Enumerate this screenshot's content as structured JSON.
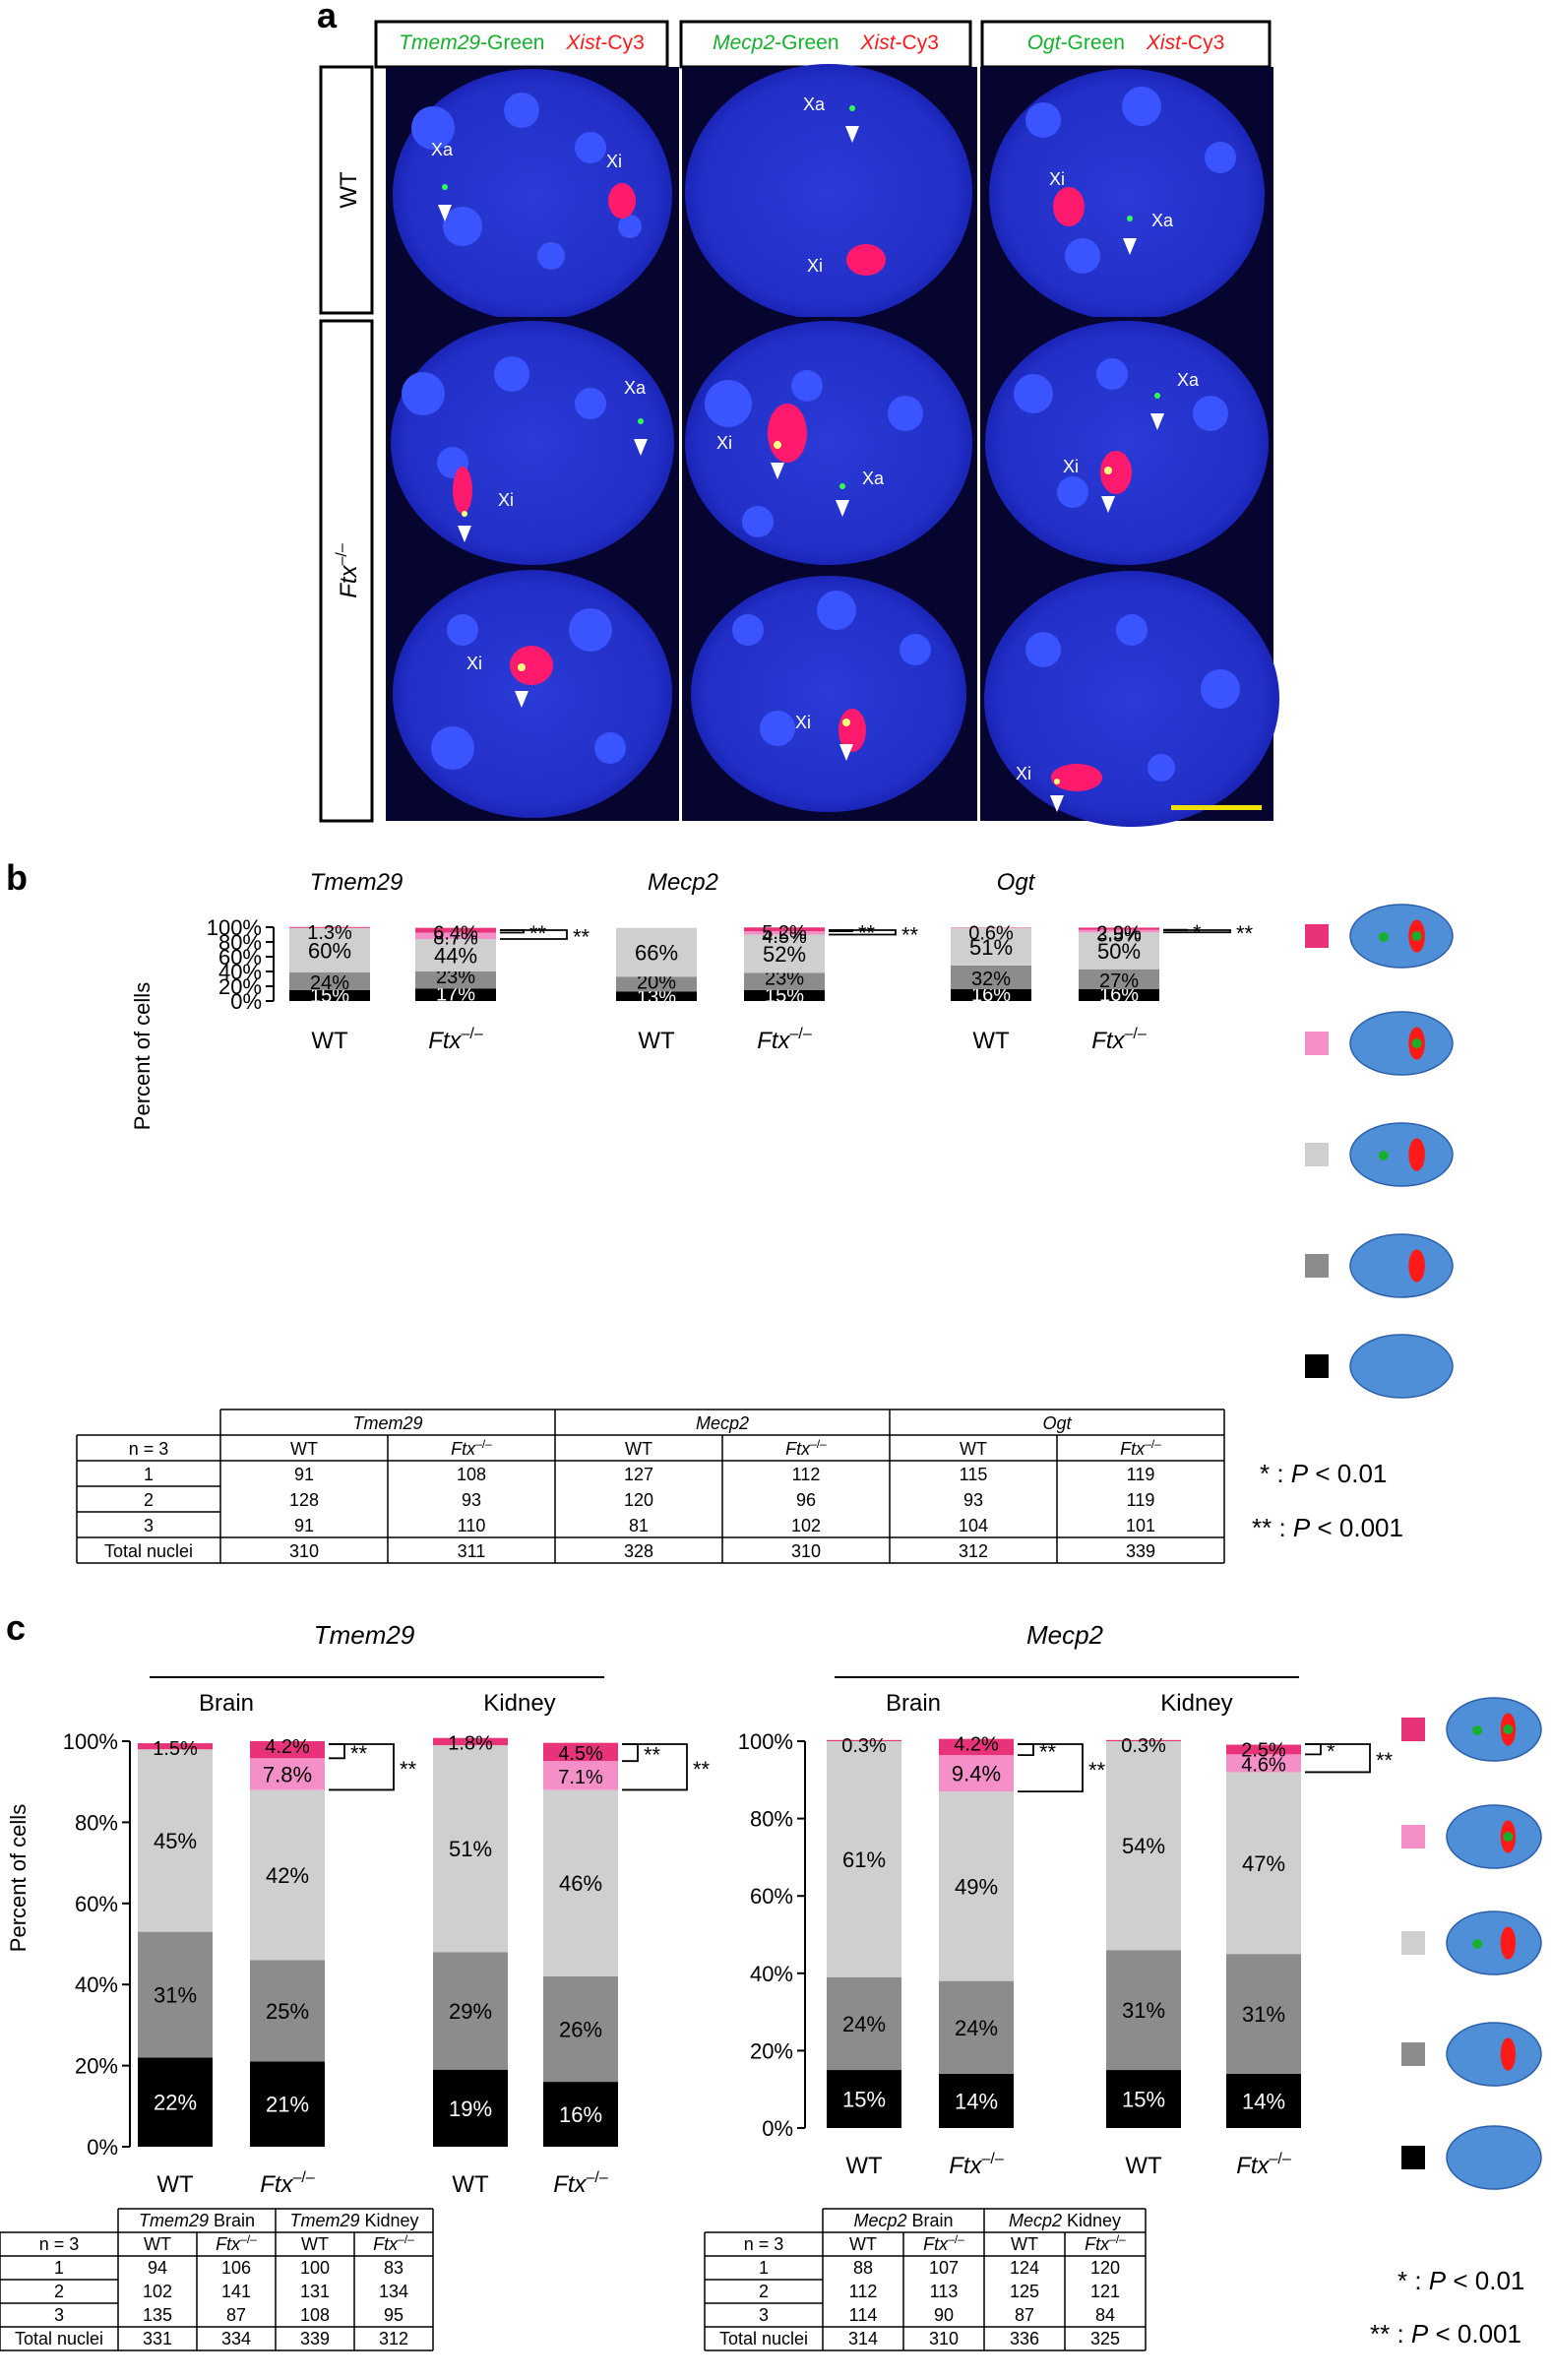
{
  "panel_a": {
    "label": "a",
    "columns": [
      {
        "gene": "Tmem29",
        "green": "-Green",
        "xist": "Xist",
        "cy3": "-Cy3"
      },
      {
        "gene": "Mecp2",
        "green": "-Green",
        "xist": "Xist",
        "cy3": "-Cy3"
      },
      {
        "gene": "Ogt",
        "green": "-Green",
        "xist": "Xist",
        "cy3": "-Cy3"
      }
    ],
    "row_wt": "WT",
    "row_ftx": "Ftx",
    "row_ftx_sup": "–/–",
    "cells": [
      {
        "labels": [
          {
            "t": "Xa"
          },
          {
            "t": "Xi"
          }
        ]
      },
      {
        "labels": [
          {
            "t": "Xa"
          },
          {
            "t": "Xi"
          }
        ]
      },
      {
        "labels": [
          {
            "t": "Xi"
          },
          {
            "t": "Xa"
          }
        ]
      },
      {
        "labels": [
          {
            "t": "Xa"
          },
          {
            "t": "Xi"
          }
        ]
      },
      {
        "labels": [
          {
            "t": "Xi"
          },
          {
            "t": "Xa"
          }
        ]
      },
      {
        "labels": [
          {
            "t": "Xa"
          },
          {
            "t": "Xi"
          }
        ]
      },
      {
        "labels": [
          {
            "t": "Xi"
          }
        ]
      },
      {
        "labels": [
          {
            "t": "Xi"
          }
        ]
      },
      {
        "labels": [
          {
            "t": "Xi"
          }
        ]
      }
    ]
  },
  "panel_b": {
    "label": "b",
    "ylabel": "Percent of cells",
    "yticks": [
      "0%",
      "20%",
      "40%",
      "60%",
      "80%",
      "100%"
    ],
    "wt": "WT",
    "ftx": "Ftx",
    "ftx_sup": "–/–",
    "table": {
      "n_label": "n = 3",
      "genes": [
        "Tmem29",
        "Mecp2",
        "Ogt"
      ],
      "sub": [
        "WT",
        "Ftx",
        "WT",
        "Ftx",
        "WT",
        "Ftx"
      ],
      "rows": [
        {
          "label": "1",
          "values": [
            "91",
            "108",
            "127",
            "112",
            "115",
            "119"
          ]
        },
        {
          "label": "2",
          "values": [
            "128",
            "93",
            "120",
            "96",
            "93",
            "119"
          ]
        },
        {
          "label": "3",
          "values": [
            "91",
            "110",
            "81",
            "102",
            "104",
            "101"
          ]
        },
        {
          "label": "Total nuclei",
          "values": [
            "310",
            "311",
            "328",
            "310",
            "312",
            "339"
          ]
        }
      ]
    },
    "sig1": "* : P < 0.01",
    "sig2": "** : P < 0.001"
  },
  "panel_c": {
    "label": "c",
    "ylabel": "Percent of cells",
    "yticks": [
      "0%",
      "20%",
      "40%",
      "60%",
      "80%",
      "100%"
    ],
    "left_gene": "Tmem29",
    "right_gene": "Mecp2",
    "brain": "Brain",
    "kidney": "Kidney",
    "wt": "WT",
    "ftx": "Ftx",
    "ftx_sup": "–/–",
    "table_left": {
      "n_label": "n = 3",
      "groups": [
        {
          "gene": "Tmem29",
          "tissue": " Brain"
        },
        {
          "gene": "Tmem29",
          "tissue": " Kidney"
        }
      ],
      "sub": [
        "WT",
        "Ftx",
        "WT",
        "Ftx"
      ],
      "rows": [
        {
          "label": "1",
          "values": [
            "94",
            "106",
            "100",
            "83"
          ]
        },
        {
          "label": "2",
          "values": [
            "102",
            "141",
            "131",
            "134"
          ]
        },
        {
          "label": "3",
          "values": [
            "135",
            "87",
            "108",
            "95"
          ]
        },
        {
          "label": "Total nuclei",
          "values": [
            "331",
            "334",
            "339",
            "312"
          ]
        }
      ]
    },
    "table_right": {
      "n_label": "n = 3",
      "groups": [
        {
          "gene": "Mecp2",
          "tissue": " Brain"
        },
        {
          "gene": "Mecp2",
          "tissue": " Kidney"
        }
      ],
      "sub": [
        "WT",
        "Ftx",
        "WT",
        "Ftx"
      ],
      "rows": [
        {
          "label": "1",
          "values": [
            "88",
            "107",
            "124",
            "120"
          ]
        },
        {
          "label": "2",
          "values": [
            "112",
            "113",
            "125",
            "121"
          ]
        },
        {
          "label": "3",
          "values": [
            "114",
            "90",
            "87",
            "84"
          ]
        },
        {
          "label": "Total nuclei",
          "values": [
            "314",
            "310",
            "336",
            "325"
          ]
        }
      ]
    },
    "sig1": "* : P < 0.01",
    "sig2": "** : P < 0.001"
  },
  "colors": {
    "cat1": "#e8337a",
    "cat2": "#f58fc8",
    "cat3": "#cfcfcf",
    "cat4": "#8c8c8c",
    "cat5": "#000000",
    "nucleus": "#4f8fd8",
    "xist": "#ff1a1a",
    "gene_green": "#16b02d",
    "micro_bg": "#1a1fc0"
  },
  "chart_data": [
    {
      "type": "bar",
      "stacked": true,
      "panel": "b-Tmem29",
      "title": "Tmem29",
      "categories": [
        "WT",
        "Ftx–/–"
      ],
      "series": [
        {
          "values": [
            15,
            17
          ],
          "labels": [
            "15%",
            "17%"
          ]
        },
        {
          "values": [
            24,
            23
          ],
          "labels": [
            "24%",
            "23%"
          ]
        },
        {
          "values": [
            60,
            44
          ],
          "labels": [
            "60%",
            "44%"
          ]
        },
        {
          "values": [
            0,
            8.7
          ],
          "labels": [
            "",
            "8.7%"
          ]
        },
        {
          "values": [
            1.3,
            6.4
          ],
          "labels": [
            "1.3%",
            "6.4%"
          ]
        }
      ],
      "significance": [
        "**",
        "**"
      ],
      "ylim": [
        0,
        100
      ]
    },
    {
      "type": "bar",
      "stacked": true,
      "panel": "b-Mecp2",
      "title": "Mecp2",
      "categories": [
        "WT",
        "Ftx–/–"
      ],
      "series": [
        {
          "values": [
            13,
            15
          ],
          "labels": [
            "13%",
            "15%"
          ]
        },
        {
          "values": [
            20,
            23
          ],
          "labels": [
            "20%",
            "23%"
          ]
        },
        {
          "values": [
            66,
            52
          ],
          "labels": [
            "66%",
            "52%"
          ]
        },
        {
          "values": [
            0,
            4.5
          ],
          "labels": [
            "",
            "4.5%"
          ]
        },
        {
          "values": [
            0,
            5.2
          ],
          "labels": [
            "",
            "5.2%"
          ]
        }
      ],
      "significance": [
        "**",
        "**"
      ],
      "ylim": [
        0,
        100
      ]
    },
    {
      "type": "bar",
      "stacked": true,
      "panel": "b-Ogt",
      "title": "Ogt",
      "categories": [
        "WT",
        "Ftx–/–"
      ],
      "series": [
        {
          "values": [
            16,
            16
          ],
          "labels": [
            "16%",
            "16%"
          ]
        },
        {
          "values": [
            32,
            27
          ],
          "labels": [
            "32%",
            "27%"
          ]
        },
        {
          "values": [
            51,
            50
          ],
          "labels": [
            "51%",
            "50%"
          ]
        },
        {
          "values": [
            0,
            3.5
          ],
          "labels": [
            "",
            "3.5%"
          ]
        },
        {
          "values": [
            0.6,
            2.9
          ],
          "labels": [
            "0.6%",
            "2.9%"
          ]
        }
      ],
      "significance": [
        "*",
        "**"
      ],
      "ylim": [
        0,
        100
      ]
    },
    {
      "type": "bar",
      "stacked": true,
      "panel": "c-Tmem29",
      "title": "Tmem29",
      "groups": [
        "Brain",
        "Kidney"
      ],
      "categories": [
        "WT",
        "Ftx–/–",
        "WT",
        "Ftx–/–"
      ],
      "series": [
        {
          "values": [
            22,
            21,
            19,
            16
          ],
          "labels": [
            "22%",
            "21%",
            "19%",
            "16%"
          ]
        },
        {
          "values": [
            31,
            25,
            29,
            26
          ],
          "labels": [
            "31%",
            "25%",
            "29%",
            "26%"
          ]
        },
        {
          "values": [
            45,
            42,
            51,
            46
          ],
          "labels": [
            "45%",
            "42%",
            "51%",
            "46%"
          ]
        },
        {
          "values": [
            0,
            7.8,
            0,
            7.1
          ],
          "labels": [
            "",
            "7.8%",
            "",
            "7.1%"
          ]
        },
        {
          "values": [
            1.5,
            4.2,
            1.8,
            4.5
          ],
          "labels": [
            "1.5%",
            "4.2%",
            "1.8%",
            "4.5%"
          ]
        }
      ],
      "significance": [
        "**",
        "**",
        "**",
        "**"
      ],
      "ylim": [
        0,
        100
      ]
    },
    {
      "type": "bar",
      "stacked": true,
      "panel": "c-Mecp2",
      "title": "Mecp2",
      "groups": [
        "Brain",
        "Kidney"
      ],
      "categories": [
        "WT",
        "Ftx–/–",
        "WT",
        "Ftx–/–"
      ],
      "series": [
        {
          "values": [
            15,
            14,
            15,
            14
          ],
          "labels": [
            "15%",
            "14%",
            "15%",
            "14%"
          ]
        },
        {
          "values": [
            24,
            24,
            31,
            31
          ],
          "labels": [
            "24%",
            "24%",
            "31%",
            "31%"
          ]
        },
        {
          "values": [
            61,
            49,
            54,
            47
          ],
          "labels": [
            "61%",
            "49%",
            "54%",
            "47%"
          ]
        },
        {
          "values": [
            0,
            9.4,
            0,
            4.6
          ],
          "labels": [
            "",
            "9.4%",
            "",
            "4.6%"
          ]
        },
        {
          "values": [
            0.3,
            4.2,
            0.3,
            2.5
          ],
          "labels": [
            "0.3%",
            "4.2%",
            "0.3%",
            "2.5%"
          ]
        }
      ],
      "significance": [
        "**",
        "**",
        "*",
        "**"
      ],
      "ylim": [
        0,
        100
      ]
    }
  ]
}
